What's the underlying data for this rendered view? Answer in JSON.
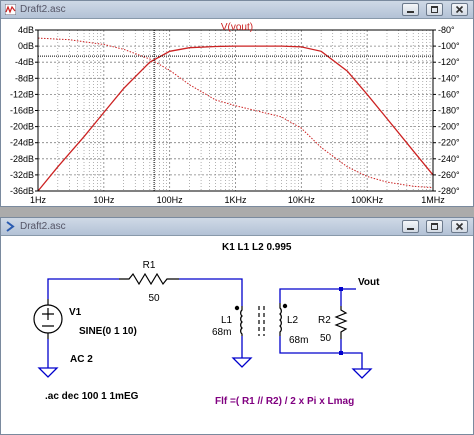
{
  "plot_window": {
    "title": "Draft2.asc",
    "trace_label": "V(vout)",
    "colors": {
      "trace": "#cc2222",
      "grid": "#808080",
      "cursor": "#000000"
    }
  },
  "chart_data": {
    "type": "line",
    "title": "V(vout)",
    "xscale": "log",
    "xlim": [
      1,
      1000000
    ],
    "x_ticks": [
      "1Hz",
      "10Hz",
      "100Hz",
      "1KHz",
      "10KHz",
      "100KHz",
      "1MHz"
    ],
    "y_left_ticks": [
      "4dB",
      "0dB",
      "-4dB",
      "-8dB",
      "-12dB",
      "-16dB",
      "-20dB",
      "-24dB",
      "-28dB",
      "-32dB",
      "-36dB"
    ],
    "y_right_ticks": [
      "-80°",
      "-100°",
      "-120°",
      "-140°",
      "-160°",
      "-180°",
      "-200°",
      "-220°",
      "-240°",
      "-260°",
      "-280°"
    ],
    "ylim_left": [
      -36,
      4
    ],
    "ylim_right": [
      -280,
      -80
    ],
    "grid": true,
    "cursor": {
      "freq": 58,
      "level_db": -2.5
    },
    "series": [
      {
        "name": "magnitude",
        "style": "solid",
        "x": [
          1,
          2,
          5,
          10,
          20,
          50,
          100,
          200,
          500,
          1000,
          2000,
          5000,
          10000,
          20000,
          50000,
          100000,
          200000,
          500000,
          1000000
        ],
        "y": [
          -36,
          -30,
          -22.5,
          -16.5,
          -10.5,
          -4,
          -1.3,
          -0.4,
          -0.1,
          0,
          0,
          0,
          -0.2,
          -1.3,
          -6.2,
          -12,
          -18,
          -26,
          -32
        ]
      },
      {
        "name": "phase",
        "style": "dotted",
        "x": [
          1,
          3,
          10,
          20,
          50,
          100,
          200,
          500,
          1000,
          2000,
          5000,
          10000,
          20000,
          50000,
          100000,
          200000,
          500000,
          1000000
        ],
        "y": [
          -90,
          -92,
          -98,
          -104,
          -116,
          -130,
          -148,
          -167,
          -174,
          -180,
          -188,
          -202,
          -226,
          -250,
          -262,
          -269,
          -274,
          -276
        ]
      }
    ]
  },
  "schematic_window": {
    "title": "Draft2.asc",
    "labels": {
      "r1_name": "R1",
      "r1_value": "50",
      "v1_name": "V1",
      "v1_value": "SINE(0 1 10)",
      "v1_ac": "AC 2",
      "l1_name": "L1",
      "l1_value": "68m",
      "l2_name": "L2",
      "l2_value": "68m",
      "r2_name": "R2",
      "r2_value": "50",
      "coupling": "K1 L1 L2 0.995",
      "vout": "Vout",
      "directive": ".ac dec 100 1 1mEG",
      "comment": "Flf =( R1 // R2)  / 2 x Pi x Lmag"
    },
    "colors": {
      "wire": "#0000cc",
      "text": "#000000",
      "comment": "#800080",
      "node_dot": "#0000cc"
    }
  }
}
